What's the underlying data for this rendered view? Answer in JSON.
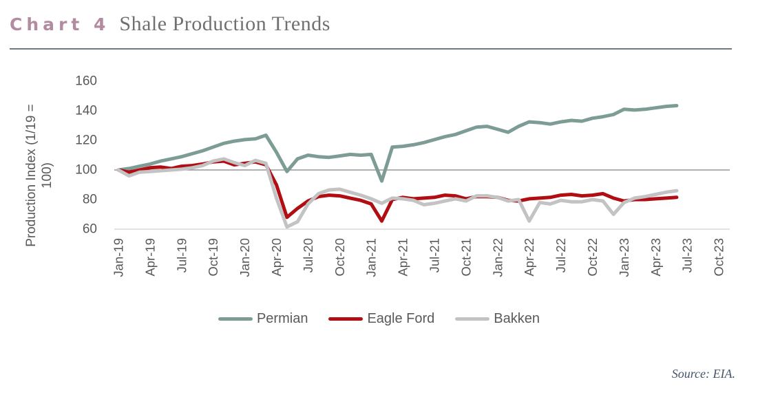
{
  "header": {
    "chart_label": "Chart 4",
    "title": "Shale Production Trends"
  },
  "source_note": "Source: EIA.",
  "colors": {
    "accent_label": "#B28BA0",
    "title_text": "#6F7070",
    "axis_text": "#595959",
    "reference_line": "#808080",
    "baseline": "#D9D9D9",
    "permian": "#7E9C96",
    "eagle_ford": "#B00E13",
    "bakken": "#C3C3C3",
    "source_text": "#44546A"
  },
  "chart_data": {
    "type": "line",
    "title": "Shale Production Trends",
    "ylabel": "Production Index (1/19 = 100)",
    "ylabel_lines": [
      "Production Index (1/19 =",
      "100)"
    ],
    "xlabel": "",
    "ylim": [
      60,
      160
    ],
    "yticks": [
      160,
      140,
      120,
      100,
      80,
      60
    ],
    "reference_line_value": 100,
    "grid": "reference line at 100 and bottom axis at 60 only",
    "legend_position": "bottom",
    "x_tick_labels": [
      "Jan-19",
      "Apr-19",
      "Jul-19",
      "Oct-19",
      "Jan-20",
      "Apr-20",
      "Jul-20",
      "Oct-20",
      "Jan-21",
      "Apr-21",
      "Jul-21",
      "Oct-21",
      "Jan-22",
      "Apr-22",
      "Jul-22",
      "Oct-22",
      "Jan-23",
      "Apr-23",
      "Jul-23",
      "Oct-23"
    ],
    "x_axis_extends_to": "Oct-23",
    "months": [
      "Jan-19",
      "Feb-19",
      "Mar-19",
      "Apr-19",
      "May-19",
      "Jun-19",
      "Jul-19",
      "Aug-19",
      "Sep-19",
      "Oct-19",
      "Nov-19",
      "Dec-19",
      "Jan-20",
      "Feb-20",
      "Mar-20",
      "Apr-20",
      "May-20",
      "Jun-20",
      "Jul-20",
      "Aug-20",
      "Sep-20",
      "Oct-20",
      "Nov-20",
      "Dec-20",
      "Jan-21",
      "Feb-21",
      "Mar-21",
      "Apr-21",
      "May-21",
      "Jun-21",
      "Jul-21",
      "Aug-21",
      "Sep-21",
      "Oct-21",
      "Nov-21",
      "Dec-21",
      "Jan-22",
      "Feb-22",
      "Mar-22",
      "Apr-22",
      "May-22",
      "Jun-22",
      "Jul-22",
      "Aug-22",
      "Sep-22",
      "Oct-22",
      "Nov-22",
      "Dec-22",
      "Jan-23",
      "Feb-23",
      "Mar-23",
      "Apr-23",
      "May-23",
      "Jun-23"
    ],
    "series": [
      {
        "name": "Permian",
        "color": "#7E9C96",
        "values": [
          100,
          101,
          102.5,
          104,
          106,
          107.5,
          109,
          111,
          113,
          115.5,
          118,
          119.5,
          120.5,
          121,
          123.5,
          112,
          99,
          107.5,
          110,
          109,
          108.5,
          109.5,
          110.5,
          110,
          110.5,
          92.5,
          115.5,
          116,
          117,
          118.5,
          120.5,
          122.5,
          124,
          126.5,
          129,
          129.5,
          127.5,
          125.5,
          129.5,
          132.5,
          132,
          131,
          132.5,
          133.5,
          133,
          135,
          136,
          137.5,
          141,
          140.5,
          141,
          142,
          143,
          143.5
        ]
      },
      {
        "name": "Eagle Ford",
        "color": "#B00E13",
        "values": [
          100,
          98.5,
          100,
          101.5,
          102,
          101,
          102.5,
          103,
          104,
          105.5,
          106,
          103.5,
          104.5,
          105.5,
          103.5,
          90,
          68,
          74,
          79,
          82,
          83,
          82.5,
          81,
          79.5,
          77,
          65.5,
          80,
          81.5,
          80.5,
          81,
          81.5,
          83,
          82.5,
          80.5,
          82,
          82,
          81.5,
          79.5,
          79,
          80.5,
          81,
          81.5,
          83,
          83.5,
          82.5,
          83,
          84,
          81,
          79,
          80,
          80,
          80.5,
          81,
          81.5
        ]
      },
      {
        "name": "Bakken",
        "color": "#C3C3C3",
        "values": [
          100,
          96,
          98.5,
          99,
          99.5,
          100,
          100.5,
          101.5,
          103,
          106,
          107.5,
          105,
          103,
          106.5,
          104.5,
          81,
          61.5,
          65,
          77,
          84,
          86.5,
          87,
          85,
          83,
          80.5,
          77.5,
          81,
          80.5,
          79.5,
          76.5,
          77.5,
          79,
          80.5,
          79,
          82.5,
          82.5,
          81.5,
          79,
          80,
          65.5,
          78,
          77,
          79.5,
          78.5,
          78.5,
          80,
          79,
          70,
          78,
          81,
          82,
          83.5,
          85,
          86
        ]
      }
    ]
  }
}
